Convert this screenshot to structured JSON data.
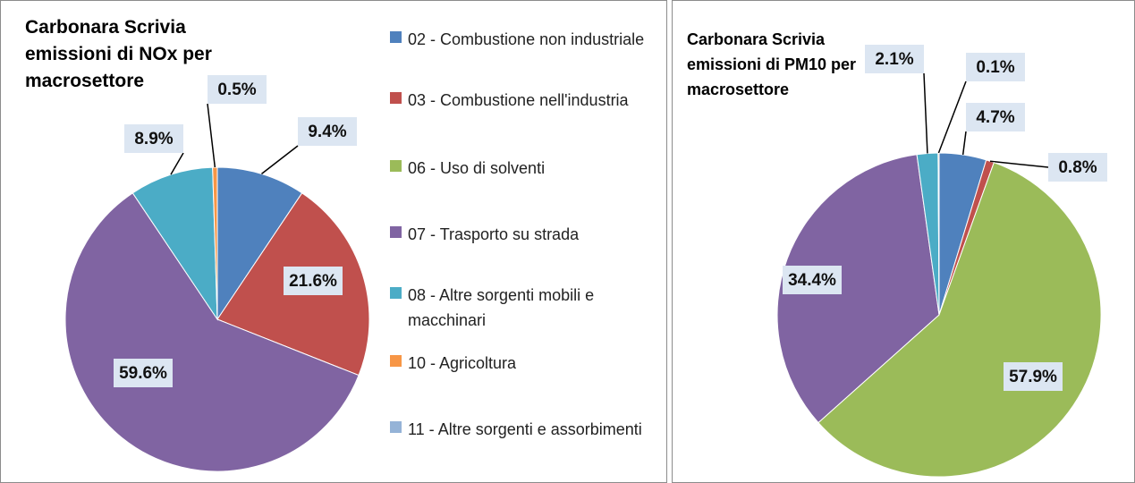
{
  "chart_data": [
    {
      "type": "pie",
      "title": "Carbonara Scrivia emissioni di NOx per macrosettore",
      "categories": [
        "02 - Combustione non industriale",
        "03 - Combustione nell'industria",
        "06 - Uso di solventi",
        "07 - Trasporto su strada",
        "08 - Altre sorgenti mobili e macchinari",
        "10 - Agricoltura",
        "11 - Altre sorgenti e assorbimenti"
      ],
      "values": [
        9.4,
        21.6,
        0,
        59.6,
        8.9,
        0.5,
        0
      ],
      "value_labels": [
        "9.4%",
        "21.6%",
        null,
        "59.6%",
        "8.9%",
        "0.5%",
        null
      ],
      "colors": [
        "#4f81bd",
        "#c0504d",
        "#9bbb59",
        "#8064a2",
        "#4bacc6",
        "#f79646",
        "#95b3d7"
      ],
      "legend": "right"
    },
    {
      "type": "pie",
      "title": "Carbonara Scrivia emissioni di PM10 per macrosettore",
      "values": [
        4.7,
        0.8,
        57.9,
        34.4,
        2.1,
        0.1,
        0
      ],
      "value_labels": [
        "4.7%",
        "0.8%",
        "57.9%",
        "34.4%",
        "2.1%",
        "0.1%",
        null
      ],
      "colors": [
        "#4f81bd",
        "#c0504d",
        "#9bbb59",
        "#8064a2",
        "#4bacc6",
        "#f79646",
        "#95b3d7"
      ]
    }
  ]
}
